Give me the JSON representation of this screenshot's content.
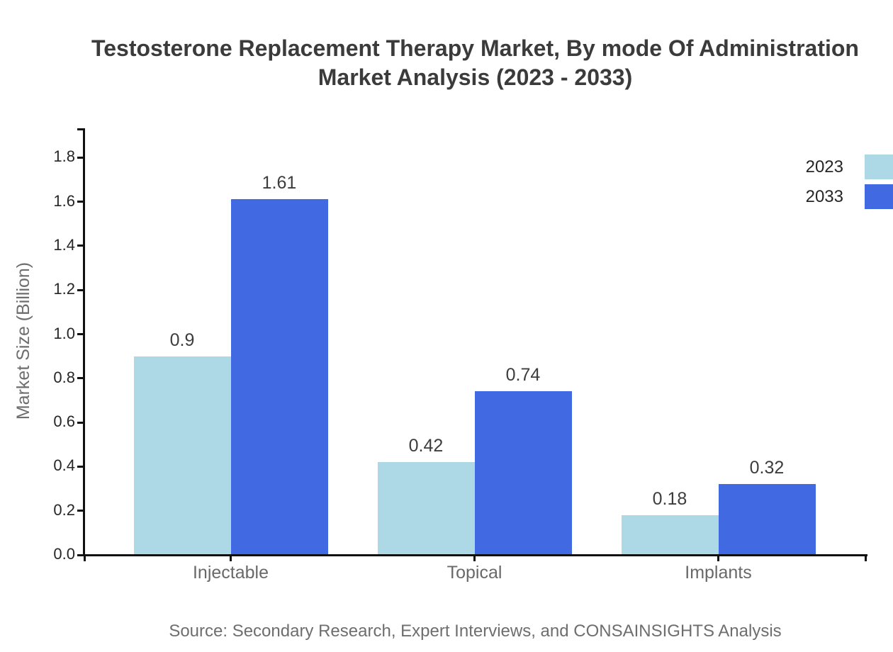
{
  "title": {
    "full": "Testosterone Replacement Therapy Market, By mode Of Administration Market Analysis (2023 - 2033)"
  },
  "source": "Source: Secondary Research, Expert Interviews, and CONSAINSIGHTS Analysis",
  "chart_data": {
    "type": "bar",
    "title": "Testosterone Replacement Therapy Market, By mode Of Administration Market Analysis (2023 - 2033)",
    "title_lines": [
      "Testosterone Replacement Therapy Market, By mode Of Administration",
      "Market Analysis (2023 - 2033)"
    ],
    "categories": [
      "Injectable",
      "Topical",
      "Implants"
    ],
    "series": [
      {
        "name": "2023",
        "color": "#ADD8E6",
        "values": [
          0.9,
          0.42,
          0.18
        ],
        "labels": [
          "0.9",
          "0.42",
          "0.18"
        ]
      },
      {
        "name": "2033",
        "color": "#4169E1",
        "values": [
          1.61,
          0.74,
          0.32
        ],
        "labels": [
          "1.61",
          "0.74",
          "0.32"
        ]
      }
    ],
    "xlabel": "",
    "ylabel": "Market Size (Billion)",
    "ylim": [
      0,
      1.93
    ],
    "yticks": [
      "0.0",
      "0.2",
      "0.4",
      "0.6",
      "0.8",
      "1.0",
      "1.2",
      "1.4",
      "1.6",
      "1.8"
    ],
    "grid": false,
    "legend_position": "top-right"
  }
}
